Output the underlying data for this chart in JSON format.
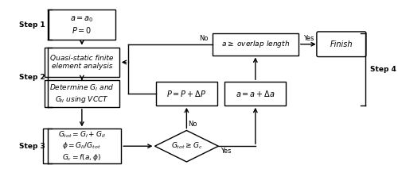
{
  "bg_color": "#ffffff",
  "text_color": "#000000",
  "box1_text": "$a = a_0$\n$P = 0$",
  "box2_text": "Quasi-static finite\nelement analysis",
  "box3_text": "Determine $G_{I}$ and\n$G_{II}$ using VCCT",
  "box4_text": "$G_{tot} = G_{I} + G_{II}$\n$\\phi = G_{II}/G_{tot}$\n$G_c = f(a, \\phi)$",
  "box5_text": "$P = P + \\Delta P$",
  "box6_text": "$a = a + \\Delta a$",
  "box7_text": "$a \\geq$ overlap length",
  "box8_text": "Finish",
  "diamond_text": "$G_{tot} \\geq G_c$",
  "step1_label": "Step 1",
  "step2_label": "Step 2",
  "step3_label": "Step 3",
  "step4_label": "Step 4",
  "yes_label": "Yes",
  "no_label": "No"
}
